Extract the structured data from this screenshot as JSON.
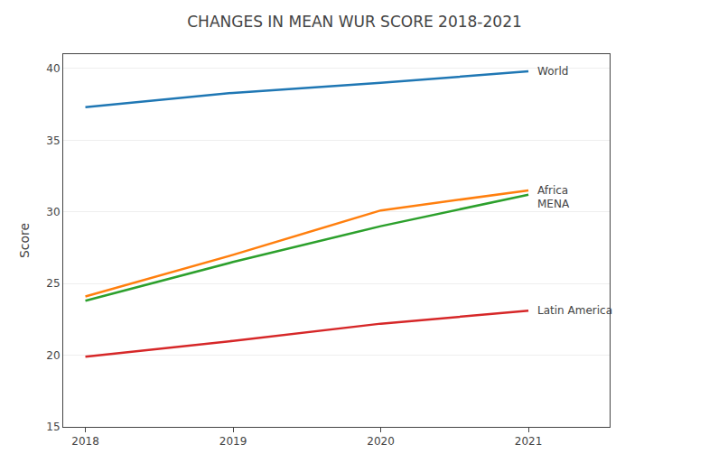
{
  "chart_data": {
    "type": "line",
    "title": "CHANGES IN MEAN WUR SCORE 2018-2021",
    "ylabel": "Score",
    "x": [
      2018,
      2019,
      2020,
      2021
    ],
    "series": [
      {
        "name": "World",
        "values": [
          37.3,
          38.3,
          39.0,
          39.8
        ]
      },
      {
        "name": "Africa",
        "values": [
          24.1,
          27.0,
          30.1,
          31.5
        ]
      },
      {
        "name": "MENA",
        "values": [
          23.8,
          26.5,
          29.0,
          31.2
        ]
      },
      {
        "name": "Latin America",
        "values": [
          19.9,
          21.0,
          22.2,
          23.1
        ]
      }
    ],
    "xlim": [
      2017.85,
      2021.55
    ],
    "xticks": [
      2018,
      2019,
      2020,
      2021
    ],
    "ylim": [
      15,
      41
    ],
    "yticks": [
      15,
      20,
      25,
      30,
      35,
      40
    ],
    "grid": "y"
  }
}
